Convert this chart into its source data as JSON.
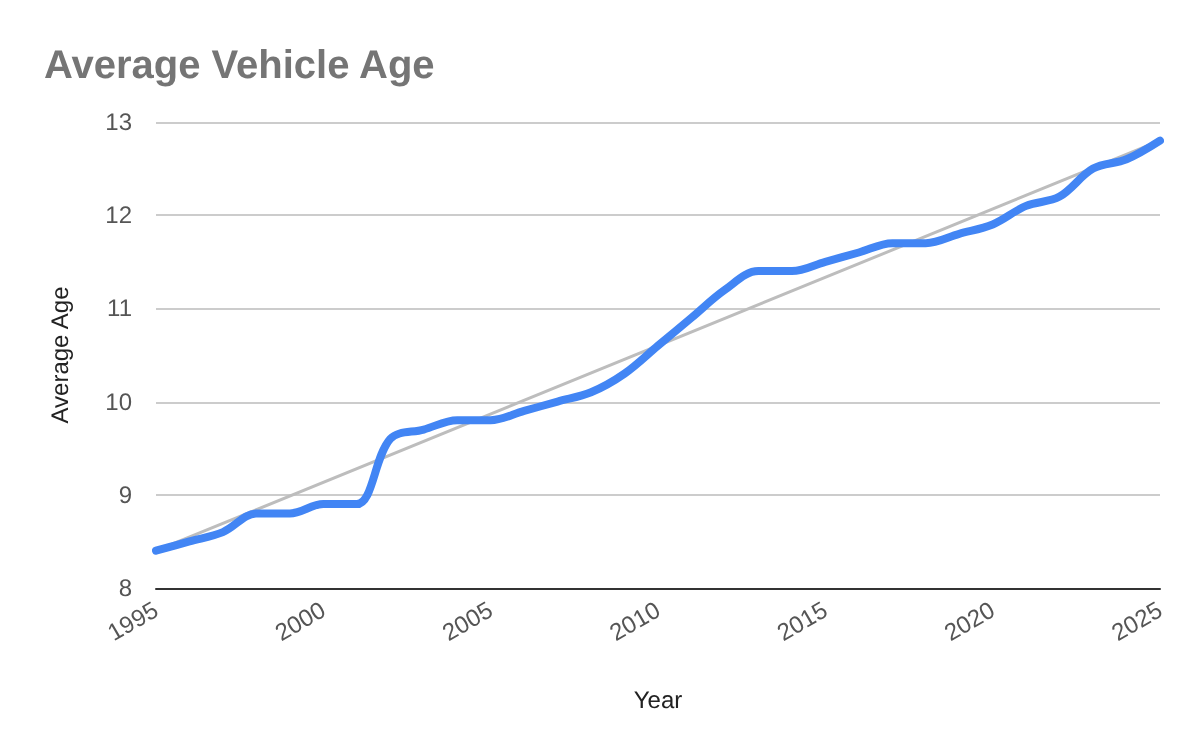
{
  "chart_data": {
    "type": "line",
    "title": "Average Vehicle Age",
    "xlabel": "Year",
    "ylabel": "Average Age",
    "xlim": [
      1995,
      2025
    ],
    "xticks": [
      1995,
      2000,
      2005,
      2010,
      2015,
      2020,
      2025
    ],
    "ylim": [
      8,
      13
    ],
    "yticks": [
      8,
      9,
      10,
      11,
      12,
      13
    ],
    "grid": "y",
    "marker": "none",
    "line_style": "solid",
    "series": [
      {
        "color": "#4285f4",
        "x": [
          1995,
          1996,
          1997,
          1998,
          1999,
          2000,
          2001,
          2002,
          2003,
          2004,
          2005,
          2006,
          2007,
          2008,
          2009,
          2010,
          2011,
          2012,
          2013,
          2014,
          2015,
          2016,
          2017,
          2018,
          2019,
          2020,
          2021,
          2022,
          2023,
          2024,
          2025
        ],
        "values": [
          8.4,
          8.5,
          8.6,
          8.8,
          8.8,
          8.9,
          8.9,
          9.6,
          9.7,
          9.8,
          9.8,
          9.9,
          10.0,
          10.1,
          10.3,
          10.6,
          10.9,
          11.2,
          11.4,
          11.4,
          11.5,
          11.6,
          11.7,
          11.7,
          11.8,
          11.9,
          12.1,
          12.2,
          12.5,
          12.6,
          12.8
        ]
      },
      {
        "color": "#bdbdbd",
        "x": [
          1995,
          2025
        ],
        "values": [
          8.4,
          12.8
        ]
      }
    ]
  }
}
